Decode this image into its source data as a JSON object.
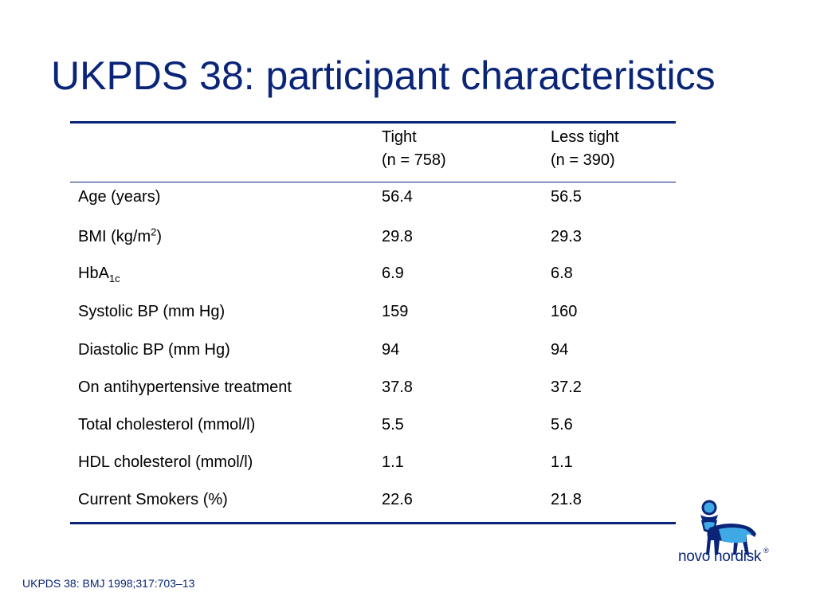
{
  "title": "UKPDS 38: participant characteristics",
  "columns": {
    "tight": {
      "label": "Tight",
      "n": "(n = 758)"
    },
    "less_tight": {
      "label": "Less tight",
      "n": "(n = 390)"
    }
  },
  "rows": [
    {
      "label": "Age (years)",
      "tight": "56.4",
      "less_tight": "56.5"
    },
    {
      "label_main": "BMI (kg/m",
      "label_sup": "2",
      "label_tail": ")",
      "tight": "29.8",
      "less_tight": "29.3"
    },
    {
      "label_main": "HbA",
      "label_sub": "1c",
      "tight": "6.9",
      "less_tight": "6.8"
    },
    {
      "label": "Systolic BP (mm Hg)",
      "tight": "159",
      "less_tight": "160"
    },
    {
      "label": "Diastolic BP (mm Hg)",
      "tight": "94",
      "less_tight": "94"
    },
    {
      "label": "On antihypertensive treatment",
      "tight": "37.8",
      "less_tight": "37.2"
    },
    {
      "label": "Total cholesterol (mmol/l)",
      "tight": "5.5",
      "less_tight": "5.6"
    },
    {
      "label": "HDL cholesterol (mmol/l)",
      "tight": "1.1",
      "less_tight": "1.1"
    },
    {
      "label": "Current Smokers (%)",
      "tight": "22.6",
      "less_tight": "21.8"
    }
  ],
  "footnote": "UKPDS 38: BMJ 1998;317:703–13",
  "logo": {
    "text": "novo nordisk",
    "registered": "®",
    "icon": "bull-icon"
  },
  "colors": {
    "brand_blue": "#0a2578",
    "logo_light_blue": "#3fa9e6"
  }
}
